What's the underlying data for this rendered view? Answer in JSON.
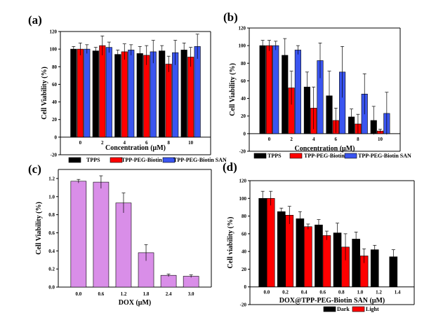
{
  "chart_data": [
    {
      "panel": "(a)",
      "type": "bar",
      "categories": [
        "0",
        "2",
        "4",
        "6",
        "8",
        "10"
      ],
      "series": [
        {
          "name": "TPPS",
          "color": "#000000",
          "values": [
            100,
            98,
            94,
            95,
            98,
            99
          ],
          "errors": [
            3,
            4,
            5,
            8,
            6,
            8
          ]
        },
        {
          "name": "TPP-PEG-Biotin",
          "color": "#ff0000",
          "values": [
            100,
            104,
            97,
            93,
            83,
            91
          ],
          "errors": [
            7,
            11,
            9,
            11,
            9,
            11
          ]
        },
        {
          "name": "TPP-PEG-Biotin SAN",
          "color": "#3a55f0",
          "values": [
            100,
            102,
            99,
            97,
            96,
            103
          ],
          "errors": [
            5,
            6,
            6,
            13,
            14,
            14
          ]
        }
      ],
      "xlabel": "Concentration (μM)",
      "ylabel": "Cell Viability (%)",
      "ylim": [
        -20,
        120
      ],
      "yticks": [
        "-20",
        "0",
        "20",
        "40",
        "60",
        "80",
        "100",
        "120"
      ],
      "legend": "bottom"
    },
    {
      "panel": "(b)",
      "type": "bar",
      "categories": [
        "0",
        "2",
        "4",
        "6",
        "8",
        "10"
      ],
      "series": [
        {
          "name": "TPPS",
          "color": "#000000",
          "values": [
            100,
            89,
            53,
            43,
            19,
            15
          ],
          "errors": [
            6,
            19,
            17,
            28,
            9,
            16
          ]
        },
        {
          "name": "TPP-PEG-Biotin",
          "color": "#ff0000",
          "values": [
            100,
            52,
            29,
            15,
            11,
            3
          ],
          "errors": [
            6,
            19,
            24,
            14,
            11,
            2
          ]
        },
        {
          "name": "TPP-PEG-Biotin SAN",
          "color": "#3a55f0",
          "values": [
            100,
            95,
            83,
            70,
            45,
            23
          ],
          "errors": [
            5,
            5,
            20,
            29,
            23,
            24
          ]
        }
      ],
      "xlabel": "Concentration (μM)",
      "ylabel": "Cell Viability (%)",
      "ylim": [
        -20,
        120
      ],
      "yticks": [
        "-20",
        "0",
        "20",
        "40",
        "60",
        "80",
        "100",
        "120"
      ],
      "legend": "bottom"
    },
    {
      "panel": "(c)",
      "type": "bar",
      "categories": [
        "0.0",
        "0.6",
        "1.2",
        "1.8",
        "2.4",
        "3.0"
      ],
      "series": [
        {
          "name": "",
          "color": "#d98ee8",
          "values": [
            1.17,
            1.16,
            0.93,
            0.38,
            0.13,
            0.12
          ],
          "errors": [
            0.02,
            0.07,
            0.11,
            0.09,
            0.015,
            0.015
          ]
        }
      ],
      "xlabel": "DOX (μM)",
      "ylabel": "Cell Viability (%)",
      "ylim": [
        0,
        1.3
      ],
      "yticks": [
        "0.0",
        "0.2",
        "0.4",
        "0.6",
        "0.8",
        "1.0",
        "1.2"
      ],
      "legend": "none"
    },
    {
      "panel": "(d)",
      "type": "bar",
      "categories": [
        "0.0",
        "0.2",
        "0.4",
        "0.6",
        "0.8",
        "1.0",
        "1.2",
        "1.4"
      ],
      "series": [
        {
          "name": "Dark",
          "color": "#000000",
          "values": [
            100,
            85,
            77,
            70,
            61,
            54,
            42,
            34
          ],
          "errors": [
            8,
            4,
            8,
            6,
            11,
            8,
            5,
            8
          ]
        },
        {
          "name": "Light",
          "color": "#ff0000",
          "values": [
            100,
            81,
            68,
            58,
            45,
            35,
            null,
            null
          ],
          "errors": [
            8,
            10,
            3,
            5,
            15,
            8,
            null,
            null
          ]
        }
      ],
      "xlabel": "DOX@TPP-PEG-Biotin SAN (μM)",
      "ylabel": "Cell viability (%)",
      "ylim": [
        -20,
        120
      ],
      "yticks": [
        "-20",
        "0",
        "20",
        "40",
        "60",
        "80",
        "100",
        "120"
      ],
      "legend": "bottom"
    }
  ]
}
